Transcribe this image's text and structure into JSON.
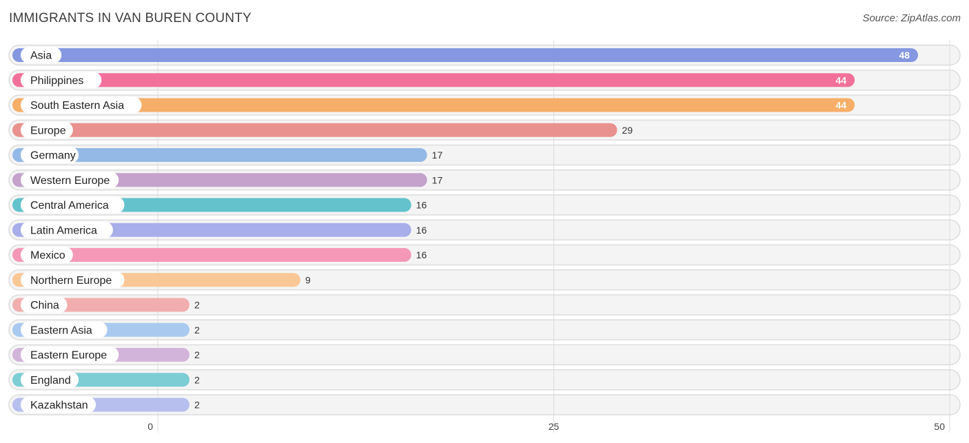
{
  "chart_data": {
    "type": "bar",
    "orientation": "horizontal",
    "title": "IMMIGRANTS IN VAN BUREN COUNTY",
    "source": "Source: ZipAtlas.com",
    "xlim": [
      0,
      50
    ],
    "xticks": [
      0,
      25,
      50
    ],
    "grid": true,
    "categories": [
      "Asia",
      "Philippines",
      "South Eastern Asia",
      "Europe",
      "Germany",
      "Western Europe",
      "Central America",
      "Latin America",
      "Mexico",
      "Northern Europe",
      "China",
      "Eastern Asia",
      "Eastern Europe",
      "England",
      "Kazakhstan"
    ],
    "values": [
      48,
      44,
      44,
      29,
      17,
      17,
      16,
      16,
      16,
      9,
      2,
      2,
      2,
      2,
      2
    ],
    "colors": [
      "#8497e0",
      "#f2719b",
      "#f7ae68",
      "#e9918e",
      "#94b9e6",
      "#c4a2cb",
      "#63c2cb",
      "#a8aeea",
      "#f598b7",
      "#f9c796",
      "#f2aeae",
      "#a9c9ef",
      "#d2b4da",
      "#7ccdd4",
      "#b7bfee"
    ]
  }
}
